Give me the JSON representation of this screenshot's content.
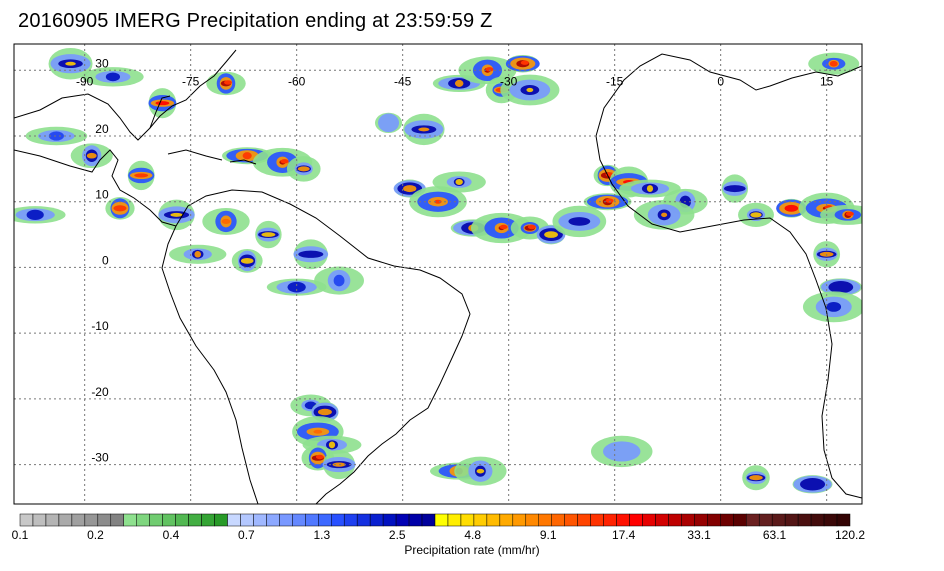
{
  "title": "20160905 IMERG Precipitation ending at 23:59:59 Z",
  "lon_labels": [
    "-90",
    "-75",
    "-60",
    "-45",
    "-30",
    "-15",
    "0",
    "15"
  ],
  "lon_values": [
    -90,
    -75,
    -60,
    -45,
    -30,
    -15,
    0,
    15
  ],
  "lat_labels": [
    "30",
    "20",
    "10",
    "0",
    "-10",
    "-20",
    "-30"
  ],
  "lat_values": [
    30,
    20,
    10,
    0,
    -10,
    -20,
    -30
  ],
  "lon_range": [
    -100,
    20
  ],
  "lat_range": [
    -36,
    34
  ],
  "colorbar": {
    "label": "Precipitation rate (mm/hr)",
    "tick_labels": [
      "0.1",
      "0.2",
      "0.4",
      "0.7",
      "1.3",
      "2.5",
      "4.8",
      "9.1",
      "17.4",
      "33.1",
      "63.1",
      "120.2"
    ],
    "colors": [
      "#c8c8c8",
      "#bebebe",
      "#b4b4b4",
      "#aaaaaa",
      "#a0a0a0",
      "#969696",
      "#8c8c8c",
      "#828282",
      "#8ee08e",
      "#7fd67f",
      "#70cc70",
      "#61c261",
      "#52b852",
      "#43ae43",
      "#34a434",
      "#289a28",
      "#c8d8ff",
      "#b4c8ff",
      "#a0b8ff",
      "#8ca8ff",
      "#7898ff",
      "#6488ff",
      "#5078ff",
      "#3c68ff",
      "#2850ff",
      "#1e40f0",
      "#1430e0",
      "#0a20d0",
      "#0010c0",
      "#0000b4",
      "#0000a8",
      "#00009c",
      "#ffff00",
      "#ffee00",
      "#ffdd00",
      "#ffcc00",
      "#ffbb00",
      "#ffaa00",
      "#ff9900",
      "#ff8800",
      "#ff7700",
      "#ff6600",
      "#ff5500",
      "#ff4400",
      "#ff3300",
      "#ff2200",
      "#ff1100",
      "#ff0000",
      "#e60000",
      "#d20000",
      "#be0000",
      "#aa0000",
      "#960000",
      "#820000",
      "#6e0000",
      "#5a0000",
      "#6b2020",
      "#632020",
      "#5b1a1a",
      "#531515",
      "#4b1010",
      "#430c0c",
      "#3b0808",
      "#330404"
    ]
  },
  "precip_cells": [
    {
      "lon": -92,
      "lat": 31,
      "level": 0.55
    },
    {
      "lon": -86,
      "lat": 29,
      "level": 0.45
    },
    {
      "lon": -70,
      "lat": 28,
      "level": 0.9
    },
    {
      "lon": -79,
      "lat": 25,
      "level": 0.75
    },
    {
      "lon": -37,
      "lat": 28,
      "level": 0.6
    },
    {
      "lon": -33,
      "lat": 30,
      "level": 0.95
    },
    {
      "lon": -31,
      "lat": 27,
      "level": 0.7
    },
    {
      "lon": -28,
      "lat": 31,
      "level": 0.85
    },
    {
      "lon": -27,
      "lat": 27,
      "level": 0.55
    },
    {
      "lon": 16,
      "lat": 31,
      "level": 0.7
    },
    {
      "lon": -47,
      "lat": 22,
      "level": 0.35
    },
    {
      "lon": -42,
      "lat": 21,
      "level": 0.6
    },
    {
      "lon": -94,
      "lat": 20,
      "level": 0.4
    },
    {
      "lon": -89,
      "lat": 17,
      "level": 0.6
    },
    {
      "lon": -82,
      "lat": 14,
      "level": 0.7
    },
    {
      "lon": -67,
      "lat": 17,
      "level": 0.7
    },
    {
      "lon": -62,
      "lat": 16,
      "level": 0.95
    },
    {
      "lon": -59,
      "lat": 15,
      "level": 0.6
    },
    {
      "lon": -44,
      "lat": 12,
      "level": 0.6
    },
    {
      "lon": -40,
      "lat": 10,
      "level": 0.7
    },
    {
      "lon": -37,
      "lat": 13,
      "level": 0.55
    },
    {
      "lon": -16,
      "lat": 14,
      "level": 0.85
    },
    {
      "lon": -13,
      "lat": 13,
      "level": 0.75
    },
    {
      "lon": -10,
      "lat": 12,
      "level": 0.55
    },
    {
      "lon": -5,
      "lat": 10,
      "level": 0.5
    },
    {
      "lon": 2,
      "lat": 12,
      "level": 0.5
    },
    {
      "lon": -16,
      "lat": 10,
      "level": 0.9
    },
    {
      "lon": -8,
      "lat": 8,
      "level": 0.6
    },
    {
      "lon": 5,
      "lat": 8,
      "level": 0.55
    },
    {
      "lon": 10,
      "lat": 9,
      "level": 0.75
    },
    {
      "lon": 15,
      "lat": 9,
      "level": 0.95
    },
    {
      "lon": 18,
      "lat": 8,
      "level": 0.85
    },
    {
      "lon": -85,
      "lat": 9,
      "level": 0.7
    },
    {
      "lon": -77,
      "lat": 8,
      "level": 0.55
    },
    {
      "lon": -97,
      "lat": 8,
      "level": 0.45
    },
    {
      "lon": -70,
      "lat": 7,
      "level": 0.65
    },
    {
      "lon": -64,
      "lat": 5,
      "level": 0.55
    },
    {
      "lon": -35,
      "lat": 6,
      "level": 0.6
    },
    {
      "lon": -31,
      "lat": 6,
      "level": 0.95
    },
    {
      "lon": -27,
      "lat": 6,
      "level": 0.85
    },
    {
      "lon": -24,
      "lat": 5,
      "level": 0.55
    },
    {
      "lon": -20,
      "lat": 7,
      "level": 0.5
    },
    {
      "lon": -74,
      "lat": 2,
      "level": 0.6
    },
    {
      "lon": -67,
      "lat": 1,
      "level": 0.55
    },
    {
      "lon": -58,
      "lat": 2,
      "level": 0.5
    },
    {
      "lon": -60,
      "lat": -3,
      "level": 0.45
    },
    {
      "lon": -54,
      "lat": -2,
      "level": 0.4
    },
    {
      "lon": 15,
      "lat": 2,
      "level": 0.6
    },
    {
      "lon": 17,
      "lat": -3,
      "level": 0.5
    },
    {
      "lon": 16,
      "lat": -6,
      "level": 0.45
    },
    {
      "lon": -58,
      "lat": -21,
      "level": 0.45
    },
    {
      "lon": -56,
      "lat": -22,
      "level": 0.6
    },
    {
      "lon": -57,
      "lat": -25,
      "level": 0.65
    },
    {
      "lon": -55,
      "lat": -27,
      "level": 0.55
    },
    {
      "lon": -57,
      "lat": -29,
      "level": 0.85
    },
    {
      "lon": -54,
      "lat": -30,
      "level": 0.6
    },
    {
      "lon": -37,
      "lat": -31,
      "level": 0.8
    },
    {
      "lon": -34,
      "lat": -31,
      "level": 0.55
    },
    {
      "lon": 5,
      "lat": -32,
      "level": 0.6
    },
    {
      "lon": 13,
      "lat": -33,
      "level": 0.5
    },
    {
      "lon": -14,
      "lat": -28,
      "level": 0.35
    }
  ]
}
